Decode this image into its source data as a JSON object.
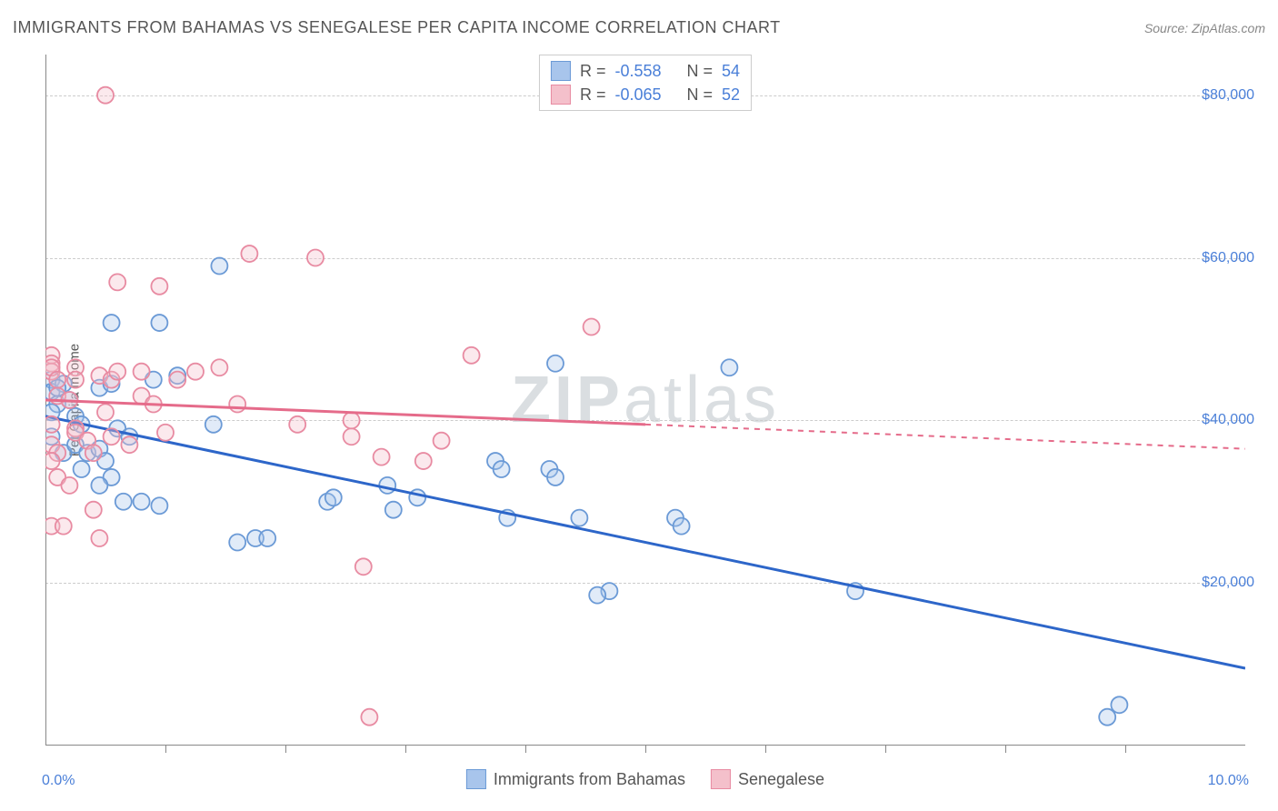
{
  "title": "IMMIGRANTS FROM BAHAMAS VS SENEGALESE PER CAPITA INCOME CORRELATION CHART",
  "source": "Source: ZipAtlas.com",
  "watermark": {
    "prefix": "ZIP",
    "suffix": "atlas"
  },
  "chart": {
    "type": "scatter",
    "y_axis_label": "Per Capita Income",
    "background_color": "#ffffff",
    "grid_color": "#cccccc",
    "axis_color": "#888888",
    "tick_label_color": "#4a7fd8",
    "xlim": [
      0,
      10
    ],
    "ylim": [
      0,
      85000
    ],
    "x_ticks": [
      {
        "pos": 0,
        "label": "0.0%"
      },
      {
        "pos": 10,
        "label": "10.0%"
      }
    ],
    "y_ticks": [
      {
        "pos": 20000,
        "label": "$20,000"
      },
      {
        "pos": 40000,
        "label": "$40,000"
      },
      {
        "pos": 60000,
        "label": "$60,000"
      },
      {
        "pos": 80000,
        "label": "$80,000"
      }
    ],
    "y_gridlines": [
      20000,
      40000,
      60000,
      80000
    ],
    "x_minor_ticks": [
      1,
      2,
      3,
      4,
      5,
      6,
      7,
      8,
      9
    ],
    "marker_radius": 9,
    "marker_stroke_width": 1.8,
    "marker_fill_opacity": 0.35
  },
  "legend_stats": {
    "rows": [
      {
        "color_fill": "#a8c5ec",
        "color_stroke": "#6b9ad6",
        "r_label": "R =",
        "r_value": "-0.558",
        "n_label": "N =",
        "n_value": "54"
      },
      {
        "color_fill": "#f4c0cb",
        "color_stroke": "#e88ba2",
        "r_label": "R =",
        "r_value": "-0.065",
        "n_label": "N =",
        "n_value": "52"
      }
    ]
  },
  "legend_series": [
    {
      "color_fill": "#a8c5ec",
      "color_stroke": "#6b9ad6",
      "label": "Immigrants from Bahamas"
    },
    {
      "color_fill": "#f4c0cb",
      "color_stroke": "#e88ba2",
      "label": "Senegalese"
    }
  ],
  "series": [
    {
      "name": "Immigrants from Bahamas",
      "color_fill": "#a8c5ec",
      "color_stroke": "#6b9ad6",
      "regression": {
        "x1": 0,
        "y1": 40500,
        "x2": 10,
        "y2": 9500,
        "solid_until_x": 10,
        "line_color": "#2d66c9",
        "line_width": 3
      },
      "points": [
        [
          0.55,
          52000
        ],
        [
          0.95,
          52000
        ],
        [
          0.05,
          45000
        ],
        [
          0.05,
          43500
        ],
        [
          0.15,
          44500
        ],
        [
          0.1,
          44000
        ],
        [
          0.1,
          42000
        ],
        [
          0.05,
          41000
        ],
        [
          0.2,
          42500
        ],
        [
          0.45,
          44000
        ],
        [
          0.55,
          44500
        ],
        [
          0.9,
          45000
        ],
        [
          1.1,
          45500
        ],
        [
          0.25,
          40500
        ],
        [
          0.3,
          39500
        ],
        [
          0.05,
          38000
        ],
        [
          0.15,
          36000
        ],
        [
          0.25,
          37000
        ],
        [
          0.35,
          36000
        ],
        [
          0.45,
          36500
        ],
        [
          0.5,
          35000
        ],
        [
          0.6,
          39000
        ],
        [
          0.7,
          38000
        ],
        [
          0.3,
          34000
        ],
        [
          0.55,
          33000
        ],
        [
          0.45,
          32000
        ],
        [
          0.65,
          30000
        ],
        [
          0.8,
          30000
        ],
        [
          0.95,
          29500
        ],
        [
          1.4,
          39500
        ],
        [
          1.45,
          59000
        ],
        [
          1.6,
          25000
        ],
        [
          1.75,
          25500
        ],
        [
          1.85,
          25500
        ],
        [
          2.35,
          30000
        ],
        [
          2.4,
          30500
        ],
        [
          2.85,
          32000
        ],
        [
          2.9,
          29000
        ],
        [
          3.1,
          30500
        ],
        [
          3.75,
          35000
        ],
        [
          3.8,
          34000
        ],
        [
          3.85,
          28000
        ],
        [
          4.2,
          34000
        ],
        [
          4.25,
          33000
        ],
        [
          4.25,
          47000
        ],
        [
          4.7,
          19000
        ],
        [
          4.45,
          28000
        ],
        [
          4.6,
          18500
        ],
        [
          5.25,
          28000
        ],
        [
          5.3,
          27000
        ],
        [
          5.7,
          46500
        ],
        [
          6.75,
          19000
        ],
        [
          8.95,
          5000
        ],
        [
          8.85,
          3500
        ]
      ]
    },
    {
      "name": "Senegalese",
      "color_fill": "#f4c0cb",
      "color_stroke": "#e88ba2",
      "regression": {
        "x1": 0,
        "y1": 42500,
        "x2": 10,
        "y2": 36500,
        "solid_until_x": 5,
        "line_color": "#e56b8a",
        "line_width": 3,
        "dash": "6,6"
      },
      "points": [
        [
          0.5,
          80000
        ],
        [
          0.05,
          48000
        ],
        [
          0.05,
          47000
        ],
        [
          0.05,
          46000
        ],
        [
          0.05,
          46500
        ],
        [
          0.1,
          45000
        ],
        [
          0.25,
          46500
        ],
        [
          0.25,
          45000
        ],
        [
          0.45,
          45500
        ],
        [
          0.55,
          45000
        ],
        [
          0.6,
          46000
        ],
        [
          0.6,
          57000
        ],
        [
          0.95,
          56500
        ],
        [
          1.1,
          45000
        ],
        [
          0.1,
          43000
        ],
        [
          0.2,
          42500
        ],
        [
          0.05,
          39500
        ],
        [
          0.25,
          39000
        ],
        [
          0.25,
          38500
        ],
        [
          0.05,
          37000
        ],
        [
          0.1,
          36000
        ],
        [
          0.05,
          35000
        ],
        [
          0.35,
          37500
        ],
        [
          0.4,
          36000
        ],
        [
          0.55,
          38000
        ],
        [
          0.5,
          41000
        ],
        [
          0.8,
          43000
        ],
        [
          0.9,
          42000
        ],
        [
          0.7,
          37000
        ],
        [
          1.0,
          38500
        ],
        [
          0.1,
          33000
        ],
        [
          0.2,
          32000
        ],
        [
          0.4,
          29000
        ],
        [
          0.05,
          27000
        ],
        [
          0.15,
          27000
        ],
        [
          0.45,
          25500
        ],
        [
          1.25,
          46000
        ],
        [
          1.45,
          46500
        ],
        [
          1.7,
          60500
        ],
        [
          1.6,
          42000
        ],
        [
          2.25,
          60000
        ],
        [
          2.1,
          39500
        ],
        [
          2.55,
          40000
        ],
        [
          2.55,
          38000
        ],
        [
          2.8,
          35500
        ],
        [
          2.65,
          22000
        ],
        [
          2.7,
          3500
        ],
        [
          3.3,
          37500
        ],
        [
          3.55,
          48000
        ],
        [
          4.55,
          51500
        ],
        [
          3.15,
          35000
        ],
        [
          0.8,
          46000
        ]
      ]
    }
  ]
}
